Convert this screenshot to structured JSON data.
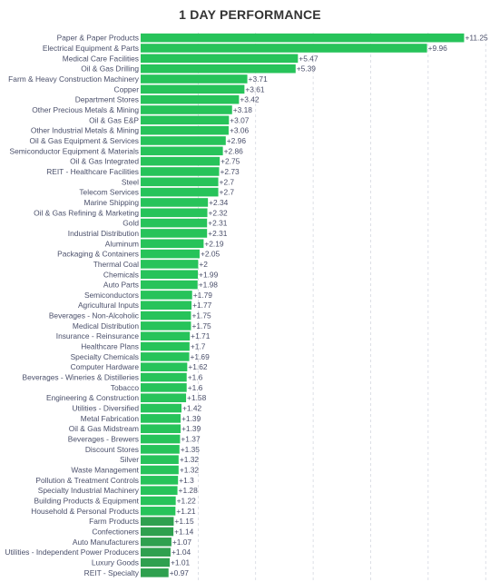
{
  "title": "1 DAY PERFORMANCE",
  "chart_data": {
    "type": "bar",
    "orientation": "horizontal",
    "title": "1 DAY PERFORMANCE",
    "xlim": [
      0,
      12
    ],
    "grid": true,
    "bar_color": "#27c35a",
    "categories": [
      "Paper & Paper Products",
      "Electrical Equipment & Parts",
      "Medical Care Facilities",
      "Oil & Gas Drilling",
      "Farm & Heavy Construction Machinery",
      "Copper",
      "Department Stores",
      "Other Precious Metals & Mining",
      "Oil & Gas E&P",
      "Other Industrial Metals & Mining",
      "Oil & Gas Equipment & Services",
      "Semiconductor Equipment & Materials",
      "Oil & Gas Integrated",
      "REIT - Healthcare Facilities",
      "Steel",
      "Telecom Services",
      "Marine Shipping",
      "Oil & Gas Refining & Marketing",
      "Gold",
      "Industrial Distribution",
      "Aluminum",
      "Packaging & Containers",
      "Thermal Coal",
      "Chemicals",
      "Auto Parts",
      "Semiconductors",
      "Agricultural Inputs",
      "Beverages - Non-Alcoholic",
      "Medical Distribution",
      "Insurance - Reinsurance",
      "Healthcare Plans",
      "Specialty Chemicals",
      "Computer Hardware",
      "Beverages - Wineries & Distilleries",
      "Tobacco",
      "Engineering & Construction",
      "Utilities - Diversified",
      "Metal Fabrication",
      "Oil & Gas Midstream",
      "Beverages - Brewers",
      "Discount Stores",
      "Silver",
      "Waste Management",
      "Pollution & Treatment Controls",
      "Specialty Industrial Machinery",
      "Building Products & Equipment",
      "Household & Personal Products",
      "Farm Products",
      "Confectioners",
      "Auto Manufacturers",
      "Utilities - Independent Power Producers",
      "Luxury Goods",
      "REIT - Specialty"
    ],
    "values": [
      11.25,
      9.96,
      5.47,
      5.39,
      3.71,
      3.61,
      3.42,
      3.18,
      3.07,
      3.06,
      2.96,
      2.86,
      2.75,
      2.73,
      2.7,
      2.7,
      2.34,
      2.32,
      2.31,
      2.31,
      2.19,
      2.05,
      2,
      1.99,
      1.98,
      1.79,
      1.77,
      1.75,
      1.75,
      1.71,
      1.7,
      1.69,
      1.62,
      1.6,
      1.6,
      1.58,
      1.42,
      1.39,
      1.39,
      1.37,
      1.35,
      1.32,
      1.32,
      1.3,
      1.28,
      1.22,
      1.21,
      1.15,
      1.14,
      1.07,
      1.04,
      1.01,
      0.97
    ],
    "labels": [
      "+11.25",
      "+9.96",
      "+5.47",
      "+5.39",
      "+3.71",
      "+3.61",
      "+3.42",
      "+3.18",
      "+3.07",
      "+3.06",
      "+2.96",
      "+2.86",
      "+2.75",
      "+2.73",
      "+2.7",
      "+2.7",
      "+2.34",
      "+2.32",
      "+2.31",
      "+2.31",
      "+2.19",
      "+2.05",
      "+2",
      "+1.99",
      "+1.98",
      "+1.79",
      "+1.77",
      "+1.75",
      "+1.75",
      "+1.71",
      "+1.7",
      "+1.69",
      "+1.62",
      "+1.6",
      "+1.6",
      "+1.58",
      "+1.42",
      "+1.39",
      "+1.39",
      "+1.37",
      "+1.35",
      "+1.32",
      "+1.32",
      "+1.3",
      "+1.28",
      "+1.22",
      "+1.21",
      "+1.15",
      "+1.14",
      "+1.07",
      "+1.04",
      "+1.01",
      "+0.97"
    ]
  }
}
